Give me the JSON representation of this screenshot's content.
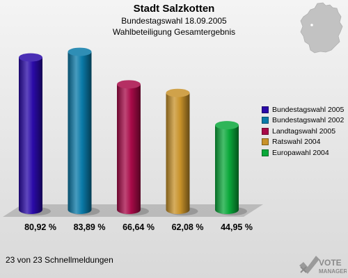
{
  "header": {
    "title": "Stadt Salzkotten",
    "subtitle1": "Bundestagswahl 18.09.2005",
    "subtitle2": "Wahlbeteiligung Gesamtergebnis"
  },
  "chart_data": {
    "type": "bar",
    "style": "3d-cylinder",
    "categories": [
      "Bundestagswahl 2005",
      "Bundestagswahl 2002",
      "Landtagswahl 2005",
      "Ratswahl 2004",
      "Europawahl 2004"
    ],
    "values": [
      80.92,
      83.89,
      66.64,
      62.08,
      44.95
    ],
    "value_labels": [
      "80,92 %",
      "83,89 %",
      "66,64 %",
      "62,08 %",
      "44,95 %"
    ],
    "colors": [
      "#2a0aa8",
      "#0a7aa8",
      "#a80a48",
      "#c8922a",
      "#0aa83a"
    ],
    "ylim": [
      0,
      90
    ],
    "grid": false,
    "legend_position": "right",
    "legend": [
      "Bundestagswahl 2005",
      "Bundestagswahl 2002",
      "Landtagswahl 2005",
      "Ratswahl 2004",
      "Europawahl 2004"
    ]
  },
  "footer": {
    "status": "23 von 23 Schnellmeldungen"
  },
  "logo": {
    "line1": "VOTE",
    "line2": "MANAGER"
  }
}
